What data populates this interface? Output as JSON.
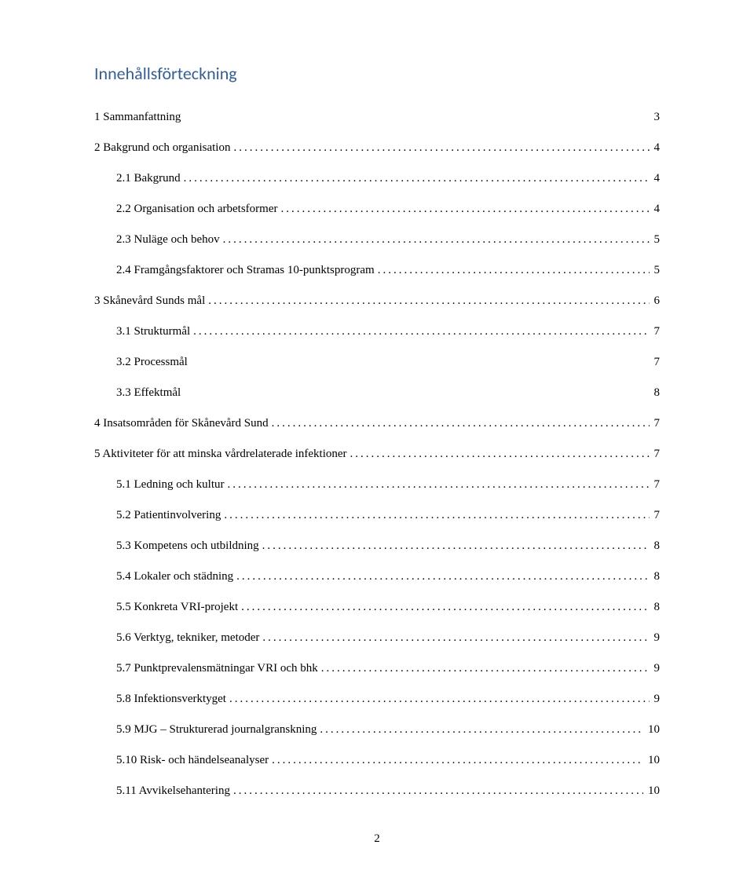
{
  "heading": {
    "text": "Innehållsförteckning",
    "color": "#365f91"
  },
  "toc": [
    {
      "level": 1,
      "label": "1  Sammanfattning",
      "leader": "spaced",
      "page": "3"
    },
    {
      "level": 1,
      "label": "2  Bakgrund och organisation",
      "leader": "dotted",
      "page": "4"
    },
    {
      "level": 2,
      "label": "2.1 Bakgrund",
      "leader": "dotted",
      "page": "4"
    },
    {
      "level": 2,
      "label": "2.2 Organisation och arbetsformer",
      "leader": "dotted",
      "page": "4"
    },
    {
      "level": 2,
      "label": "2.3 Nuläge och behov",
      "leader": "dotted",
      "page": "5"
    },
    {
      "level": 2,
      "label": "2.4 Framgångsfaktorer och Stramas 10-punktsprogram",
      "leader": "dotted",
      "page": "5"
    },
    {
      "level": 1,
      "label": "3  Skånevård Sunds mål",
      "leader": "dotted",
      "page": "6"
    },
    {
      "level": 2,
      "label": "3.1 Strukturmål",
      "leader": "dotted",
      "page": "7"
    },
    {
      "level": 2,
      "label": "3.2 Processmål",
      "leader": "spaced",
      "page": "7"
    },
    {
      "level": 2,
      "label": "3.3 Effektmål",
      "leader": "spaced",
      "page": "8"
    },
    {
      "level": 1,
      "label": "4  Insatsområden för Skånevård Sund",
      "leader": "dotted",
      "page": "7"
    },
    {
      "level": 1,
      "label": "5  Aktiviteter för att minska vårdrelaterade infektioner",
      "leader": "dotted",
      "page": "7"
    },
    {
      "level": 2,
      "label": "5.1 Ledning och kultur",
      "leader": "dotted",
      "page": "7"
    },
    {
      "level": 2,
      "label": "5.2 Patientinvolvering",
      "leader": "dotted",
      "page": "7"
    },
    {
      "level": 2,
      "label": "5.3 Kompetens och utbildning",
      "leader": "dotted",
      "page": "8"
    },
    {
      "level": 2,
      "label": "5.4 Lokaler och städning",
      "leader": "dotted",
      "page": "8"
    },
    {
      "level": 2,
      "label": "5.5 Konkreta VRI-projekt",
      "leader": "dotted",
      "page": "8"
    },
    {
      "level": 2,
      "label": "5.6 Verktyg, tekniker, metoder",
      "leader": "dotted",
      "page": "9"
    },
    {
      "level": 2,
      "label": "5.7 Punktprevalensmätningar VRI och bhk",
      "leader": "dotted",
      "page": "9"
    },
    {
      "level": 2,
      "label": "5.8 Infektionsverktyget",
      "leader": "dotted",
      "page": "9"
    },
    {
      "level": 2,
      "label": "5.9 MJG – Strukturerad journalgranskning",
      "leader": "dotted",
      "page": "10"
    },
    {
      "level": 2,
      "label": "5.10 Risk- och händelseanalyser",
      "leader": "dotted",
      "page": "10"
    },
    {
      "level": 2,
      "label": "5.11 Avvikelsehantering",
      "leader": "dotted",
      "page": "10"
    }
  ],
  "pageNumber": "2"
}
